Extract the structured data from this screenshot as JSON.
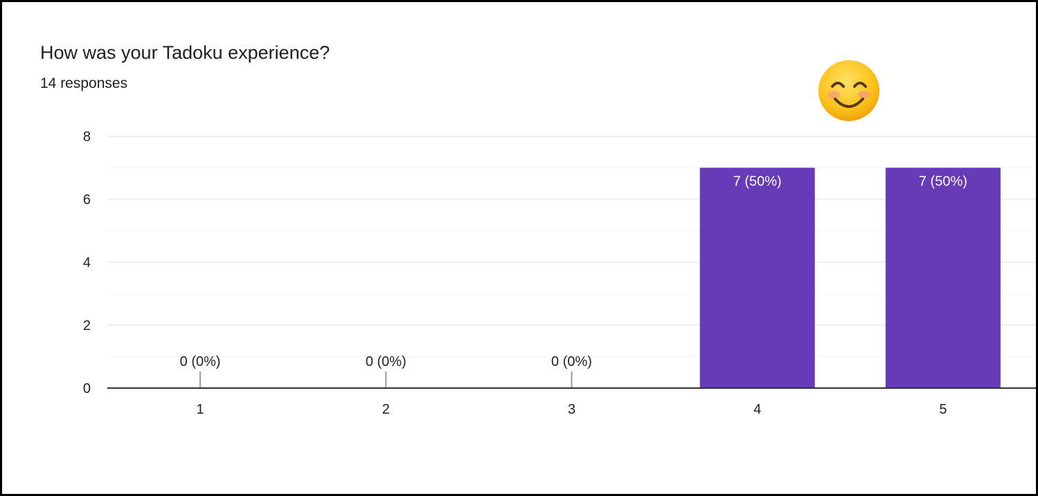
{
  "header": {
    "title": "How was your Tadoku experience?",
    "responses": "14 responses"
  },
  "decoration": {
    "emoji_icon": "smiling-face-with-smiling-eyes-icon"
  },
  "colors": {
    "bar": "#673ab7",
    "bar_label_inside": "#ffffff",
    "bar_label_outside": "#222222",
    "grid": "#ebebeb",
    "minor_grid": "#f5f5f5",
    "axis": "#333333",
    "zero_stub": "#999999"
  },
  "chart_data": {
    "type": "bar",
    "title": "How was your Tadoku experience?",
    "subtitle": "14 responses",
    "categories": [
      "1",
      "2",
      "3",
      "4",
      "5"
    ],
    "values": [
      0,
      0,
      0,
      7,
      7
    ],
    "data_labels": [
      "0 (0%)",
      "0 (0%)",
      "0 (0%)",
      "7 (50%)",
      "7 (50%)"
    ],
    "ylim": [
      0,
      8
    ],
    "yticks": [
      0,
      2,
      4,
      6,
      8
    ],
    "xlabel": "",
    "ylabel": "",
    "grid": true,
    "legend": "none"
  }
}
